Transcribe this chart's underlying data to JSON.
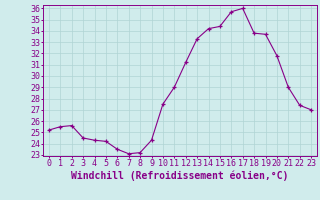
{
  "x": [
    0,
    1,
    2,
    3,
    4,
    5,
    6,
    7,
    8,
    9,
    10,
    11,
    12,
    13,
    14,
    15,
    16,
    17,
    18,
    19,
    20,
    21,
    22,
    23
  ],
  "y": [
    25.2,
    25.5,
    25.6,
    24.5,
    24.3,
    24.2,
    23.5,
    23.1,
    23.2,
    24.3,
    27.5,
    29.0,
    31.2,
    33.3,
    34.2,
    34.4,
    35.7,
    36.0,
    33.8,
    33.7,
    31.8,
    29.0,
    27.4,
    27.0
  ],
  "line_color": "#880088",
  "marker": "+",
  "marker_size": 3,
  "bg_color": "#d0ecec",
  "grid_color": "#b0d4d4",
  "xlabel": "Windchill (Refroidissement éolien,°C)",
  "xlabel_fontsize": 7,
  "tick_fontsize": 6,
  "ylim": [
    23,
    36
  ],
  "xlim": [
    -0.5,
    23.5
  ],
  "yticks": [
    23,
    24,
    25,
    26,
    27,
    28,
    29,
    30,
    31,
    32,
    33,
    34,
    35,
    36
  ],
  "xticks": [
    0,
    1,
    2,
    3,
    4,
    5,
    6,
    7,
    8,
    9,
    10,
    11,
    12,
    13,
    14,
    15,
    16,
    17,
    18,
    19,
    20,
    21,
    22,
    23
  ]
}
